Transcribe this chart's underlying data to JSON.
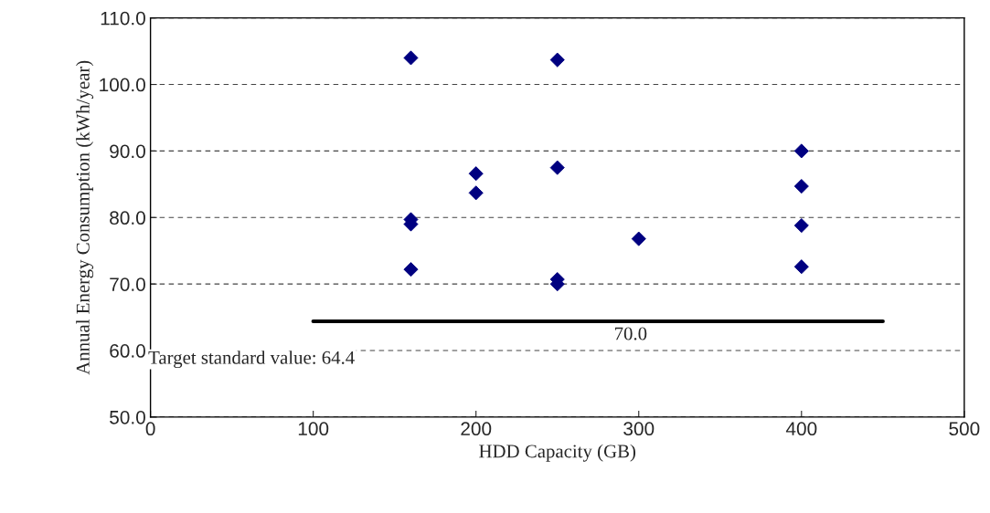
{
  "chart_data": {
    "type": "scatter",
    "xlabel": "HDD Capacity (GB)",
    "ylabel": "Annual Energy Consumption (kWh/year)",
    "xlim": [
      0,
      500
    ],
    "xticks": [
      0,
      100,
      200,
      300,
      400,
      500
    ],
    "ylim": [
      50,
      110
    ],
    "yticks": [
      {
        "value": 50,
        "label": "50.0"
      },
      {
        "value": 60,
        "label": "60.0"
      },
      {
        "value": 70,
        "label": "70.0"
      },
      {
        "value": 80,
        "label": "80.0"
      },
      {
        "value": 90,
        "label": "90.0"
      },
      {
        "value": 100,
        "label": "100.0"
      },
      {
        "value": 110,
        "label": "110.0"
      }
    ],
    "grid": "y",
    "marker": "diamond",
    "legend": false,
    "series": [
      {
        "color": "#000080",
        "x": [
          160,
          160,
          160,
          160,
          200,
          200,
          250,
          250,
          250,
          250,
          300,
          400,
          400,
          400,
          400
        ],
        "values": [
          104.0,
          79.7,
          79.0,
          72.2,
          86.6,
          83.7,
          103.7,
          87.5,
          70.7,
          70.0,
          76.8,
          90.0,
          84.7,
          78.8,
          72.6
        ]
      },
      {
        "type": "line",
        "color": "#000000",
        "marker": "none",
        "x": [
          100,
          450
        ],
        "values": [
          64.4,
          64.4
        ]
      }
    ],
    "annotations": [
      {
        "text": "Target standard value: 64.4",
        "x": 100,
        "y": 64.4
      },
      "70.0"
    ]
  }
}
